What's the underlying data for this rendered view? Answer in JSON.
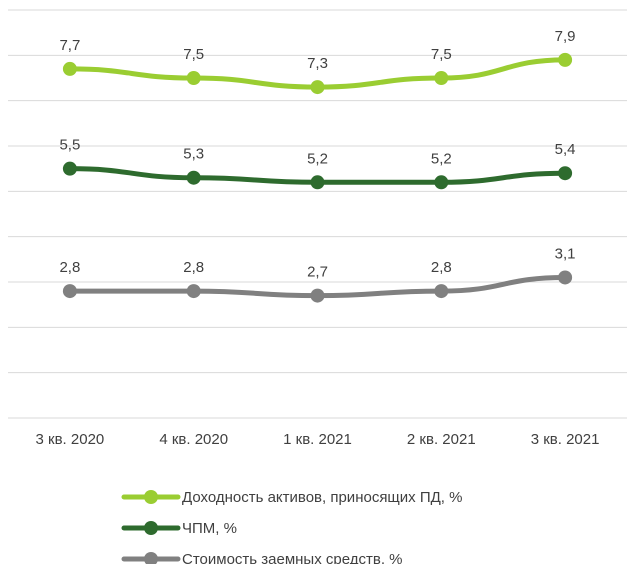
{
  "chart_data": {
    "type": "line",
    "categories": [
      "3 кв. 2020",
      "4 кв. 2020",
      "1 кв. 2021",
      "2 кв. 2021",
      "3 кв. 2021"
    ],
    "ylim": [
      0,
      9
    ],
    "grid": true,
    "legend_position": "bottom",
    "series": [
      {
        "name": "Доходность активов, приносящих ПД, %",
        "values": [
          7.7,
          7.5,
          7.3,
          7.5,
          7.9
        ],
        "labels": [
          "7,7",
          "7,5",
          "7,3",
          "7,5",
          "7,9"
        ],
        "color": "#9ACD32"
      },
      {
        "name": "ЧПМ, %",
        "values": [
          5.5,
          5.3,
          5.2,
          5.2,
          5.4
        ],
        "labels": [
          "5,5",
          "5,3",
          "5,2",
          "5,2",
          "5,4"
        ],
        "color": "#2E6B2E"
      },
      {
        "name": "Стоимость заемных средств, %",
        "values": [
          2.8,
          2.8,
          2.7,
          2.8,
          3.1
        ],
        "labels": [
          "2,8",
          "2,8",
          "2,7",
          "2,8",
          "3,1"
        ],
        "color": "#808080"
      }
    ]
  }
}
